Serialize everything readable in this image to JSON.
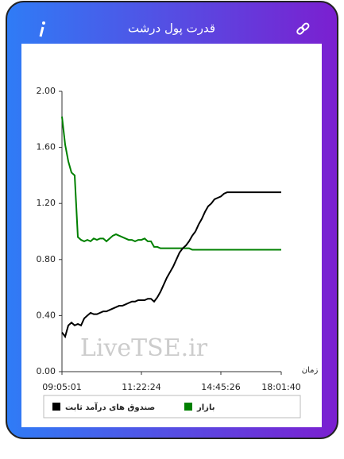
{
  "header": {
    "title": "قدرت پول درشت"
  },
  "chart_data": {
    "type": "line",
    "x": [
      0,
      1,
      2,
      3,
      4,
      5,
      6,
      7,
      8,
      9,
      10,
      11,
      12,
      13,
      14,
      15,
      16,
      17,
      18,
      19,
      20,
      21,
      22,
      23,
      24,
      25,
      26,
      27,
      28,
      29,
      30,
      31,
      32,
      33,
      34,
      35,
      36,
      37,
      38,
      39,
      40,
      41,
      42,
      43,
      44,
      45,
      46,
      47,
      48,
      49,
      50,
      51,
      52,
      53,
      54,
      55,
      56,
      57,
      58,
      59,
      60,
      61,
      62,
      63,
      64,
      65,
      66,
      67,
      68,
      69
    ],
    "xlim": [
      0,
      69
    ],
    "xticks": [
      {
        "value": 0,
        "label": "09:05:01"
      },
      {
        "value": 25,
        "label": "11:22:24"
      },
      {
        "value": 50,
        "label": "14:45:26"
      },
      {
        "value": 69,
        "label": "18:01:40"
      }
    ],
    "x_label": "زمان",
    "ylim": [
      0,
      2
    ],
    "yticks": [
      {
        "value": 0,
        "label": "0.00"
      },
      {
        "value": 0.4,
        "label": "0.40"
      },
      {
        "value": 0.8,
        "label": "0.80"
      },
      {
        "value": 1.2,
        "label": "1.20"
      },
      {
        "value": 1.6,
        "label": "1.60"
      },
      {
        "value": 2,
        "label": "2.00"
      }
    ],
    "series": [
      {
        "name": "بازار",
        "color": "#008000",
        "values": [
          1.82,
          1.62,
          1.5,
          1.42,
          1.4,
          0.96,
          0.94,
          0.93,
          0.94,
          0.93,
          0.95,
          0.94,
          0.95,
          0.95,
          0.93,
          0.95,
          0.97,
          0.98,
          0.97,
          0.96,
          0.95,
          0.94,
          0.94,
          0.93,
          0.94,
          0.94,
          0.95,
          0.93,
          0.93,
          0.89,
          0.89,
          0.88,
          0.88,
          0.88,
          0.88,
          0.88,
          0.88,
          0.88,
          0.88,
          0.88,
          0.88,
          0.87,
          0.87,
          0.87,
          0.87,
          0.87,
          0.87,
          0.87,
          0.87,
          0.87,
          0.87,
          0.87,
          0.87,
          0.87,
          0.87,
          0.87,
          0.87,
          0.87,
          0.87,
          0.87,
          0.87,
          0.87,
          0.87,
          0.87,
          0.87,
          0.87,
          0.87,
          0.87,
          0.87,
          0.87
        ]
      },
      {
        "name": "صندوق های درآمد ثابت",
        "color": "#000000",
        "values": [
          0.28,
          0.25,
          0.33,
          0.35,
          0.33,
          0.34,
          0.33,
          0.38,
          0.4,
          0.42,
          0.41,
          0.41,
          0.42,
          0.43,
          0.43,
          0.44,
          0.45,
          0.46,
          0.47,
          0.47,
          0.48,
          0.49,
          0.5,
          0.5,
          0.51,
          0.51,
          0.51,
          0.52,
          0.52,
          0.5,
          0.53,
          0.57,
          0.62,
          0.67,
          0.71,
          0.75,
          0.8,
          0.85,
          0.88,
          0.9,
          0.93,
          0.97,
          1.0,
          1.05,
          1.09,
          1.14,
          1.18,
          1.2,
          1.23,
          1.24,
          1.25,
          1.27,
          1.28,
          1.28,
          1.28,
          1.28,
          1.28,
          1.28,
          1.28,
          1.28,
          1.28,
          1.28,
          1.28,
          1.28,
          1.28,
          1.28,
          1.28,
          1.28,
          1.28,
          1.28
        ]
      }
    ],
    "watermark": "LiveTSE.ir"
  }
}
